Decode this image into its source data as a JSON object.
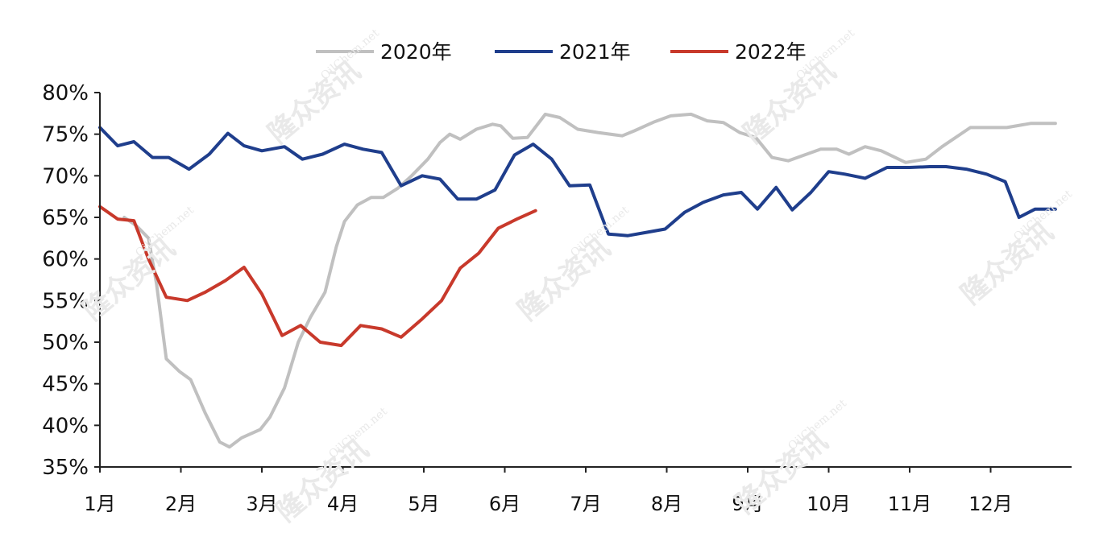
{
  "watermark": {
    "cn": "隆众资讯",
    "en": "OilChem.net"
  },
  "chart_data": {
    "type": "line",
    "y_axis": {
      "min": 35,
      "max": 80,
      "step": 5,
      "unit": "%",
      "tick_labels": [
        "35%",
        "40%",
        "45%",
        "50%",
        "55%",
        "60%",
        "65%",
        "70%",
        "75%",
        "80%"
      ]
    },
    "x_axis": {
      "min": 1,
      "max": 13,
      "tick_labels": [
        "1月",
        "2月",
        "3月",
        "4月",
        "5月",
        "6月",
        "7月",
        "8月",
        "9月",
        "10月",
        "11月",
        "12月"
      ]
    },
    "legend_position": "top-center",
    "grid": false,
    "series": [
      {
        "name": "2020年",
        "color": "#c0c0c0",
        "points": [
          [
            1.3,
            65.0
          ],
          [
            1.45,
            64.0
          ],
          [
            1.6,
            62.5
          ],
          [
            1.7,
            57.0
          ],
          [
            1.82,
            48.0
          ],
          [
            1.98,
            46.5
          ],
          [
            2.12,
            45.5
          ],
          [
            2.3,
            41.5
          ],
          [
            2.48,
            38.0
          ],
          [
            2.6,
            37.4
          ],
          [
            2.75,
            38.5
          ],
          [
            2.98,
            39.5
          ],
          [
            3.1,
            41.0
          ],
          [
            3.28,
            44.5
          ],
          [
            3.45,
            50.0
          ],
          [
            3.6,
            53.0
          ],
          [
            3.78,
            56.0
          ],
          [
            3.92,
            61.5
          ],
          [
            4.02,
            64.5
          ],
          [
            4.18,
            66.5
          ],
          [
            4.35,
            67.4
          ],
          [
            4.5,
            67.4
          ],
          [
            4.68,
            68.5
          ],
          [
            4.85,
            70.0
          ],
          [
            5.05,
            72.0
          ],
          [
            5.2,
            74.0
          ],
          [
            5.32,
            75.0
          ],
          [
            5.45,
            74.4
          ],
          [
            5.65,
            75.6
          ],
          [
            5.85,
            76.2
          ],
          [
            5.95,
            76.0
          ],
          [
            6.1,
            74.5
          ],
          [
            6.28,
            74.6
          ],
          [
            6.5,
            77.4
          ],
          [
            6.68,
            77.0
          ],
          [
            6.9,
            75.6
          ],
          [
            7.15,
            75.2
          ],
          [
            7.45,
            74.8
          ],
          [
            7.6,
            75.4
          ],
          [
            7.85,
            76.5
          ],
          [
            8.05,
            77.2
          ],
          [
            8.3,
            77.4
          ],
          [
            8.5,
            76.6
          ],
          [
            8.7,
            76.4
          ],
          [
            8.9,
            75.2
          ],
          [
            9.1,
            74.6
          ],
          [
            9.3,
            72.2
          ],
          [
            9.5,
            71.8
          ],
          [
            9.7,
            72.5
          ],
          [
            9.9,
            73.2
          ],
          [
            10.1,
            73.2
          ],
          [
            10.25,
            72.6
          ],
          [
            10.45,
            73.5
          ],
          [
            10.65,
            73.0
          ],
          [
            10.95,
            71.6
          ],
          [
            11.2,
            72.0
          ],
          [
            11.4,
            73.5
          ],
          [
            11.75,
            75.8
          ],
          [
            11.95,
            75.8
          ],
          [
            12.2,
            75.8
          ],
          [
            12.5,
            76.3
          ],
          [
            12.8,
            76.3
          ]
        ]
      },
      {
        "name": "2021年",
        "color": "#1f3e8c",
        "points": [
          [
            1.0,
            75.8
          ],
          [
            1.22,
            73.6
          ],
          [
            1.42,
            74.1
          ],
          [
            1.65,
            72.2
          ],
          [
            1.85,
            72.2
          ],
          [
            2.1,
            70.8
          ],
          [
            2.35,
            72.6
          ],
          [
            2.58,
            75.1
          ],
          [
            2.78,
            73.6
          ],
          [
            3.0,
            73.0
          ],
          [
            3.28,
            73.5
          ],
          [
            3.5,
            72.0
          ],
          [
            3.75,
            72.6
          ],
          [
            4.02,
            73.8
          ],
          [
            4.25,
            73.2
          ],
          [
            4.48,
            72.8
          ],
          [
            4.72,
            68.8
          ],
          [
            4.98,
            70.0
          ],
          [
            5.2,
            69.6
          ],
          [
            5.42,
            67.2
          ],
          [
            5.65,
            67.2
          ],
          [
            5.88,
            68.3
          ],
          [
            6.12,
            72.5
          ],
          [
            6.35,
            73.8
          ],
          [
            6.58,
            72.0
          ],
          [
            6.8,
            68.8
          ],
          [
            7.05,
            68.9
          ],
          [
            7.28,
            63.0
          ],
          [
            7.52,
            62.8
          ],
          [
            7.75,
            63.2
          ],
          [
            7.98,
            63.6
          ],
          [
            8.22,
            65.6
          ],
          [
            8.45,
            66.8
          ],
          [
            8.7,
            67.7
          ],
          [
            8.92,
            68.0
          ],
          [
            9.12,
            66.0
          ],
          [
            9.35,
            68.6
          ],
          [
            9.55,
            65.9
          ],
          [
            9.78,
            68.0
          ],
          [
            10.0,
            70.5
          ],
          [
            10.2,
            70.2
          ],
          [
            10.45,
            69.7
          ],
          [
            10.72,
            71.0
          ],
          [
            11.0,
            71.0
          ],
          [
            11.25,
            71.1
          ],
          [
            11.45,
            71.1
          ],
          [
            11.7,
            70.8
          ],
          [
            11.95,
            70.2
          ],
          [
            12.18,
            69.3
          ],
          [
            12.35,
            65.0
          ],
          [
            12.55,
            66.0
          ],
          [
            12.8,
            66.0
          ]
        ]
      },
      {
        "name": "2022年",
        "color": "#c8392b",
        "points": [
          [
            1.0,
            66.3
          ],
          [
            1.22,
            64.8
          ],
          [
            1.42,
            64.6
          ],
          [
            1.6,
            60.0
          ],
          [
            1.82,
            55.4
          ],
          [
            2.08,
            55.0
          ],
          [
            2.3,
            56.0
          ],
          [
            2.55,
            57.4
          ],
          [
            2.78,
            59.0
          ],
          [
            3.0,
            55.8
          ],
          [
            3.25,
            50.8
          ],
          [
            3.48,
            52.0
          ],
          [
            3.72,
            50.0
          ],
          [
            3.98,
            49.6
          ],
          [
            4.22,
            52.0
          ],
          [
            4.48,
            51.6
          ],
          [
            4.72,
            50.6
          ],
          [
            4.98,
            52.8
          ],
          [
            5.22,
            55.0
          ],
          [
            5.45,
            58.9
          ],
          [
            5.68,
            60.7
          ],
          [
            5.92,
            63.7
          ],
          [
            6.15,
            64.8
          ],
          [
            6.38,
            65.8
          ]
        ]
      }
    ]
  }
}
